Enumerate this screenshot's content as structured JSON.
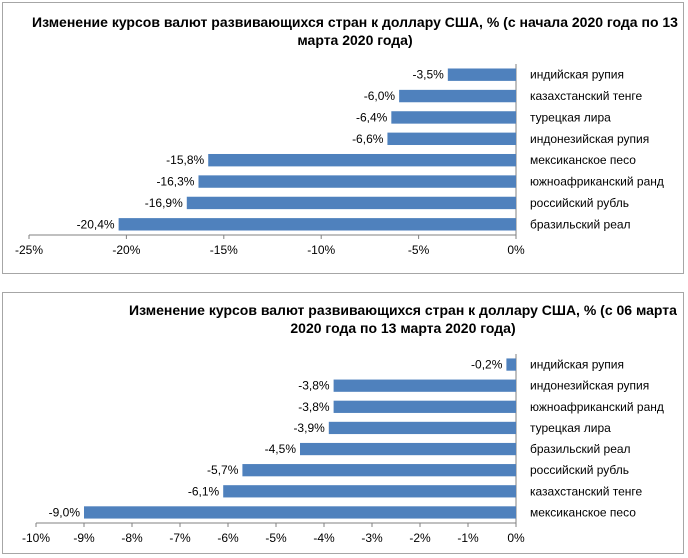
{
  "chart_data": [
    {
      "type": "bar",
      "orientation": "horizontal",
      "title": "Изменение курсов валют развивающихся стран к доллару США, % (с начала 2020 года по 13 марта 2020 года)",
      "categories": [
        "индийская рупия",
        "казахстанский тенге",
        "турецкая лира",
        "индонезийская рупия",
        "мексиканское песо",
        "южноафриканский ранд",
        "российский рубль",
        "бразильский реал"
      ],
      "values": [
        -3.5,
        -6.0,
        -6.4,
        -6.6,
        -15.8,
        -16.3,
        -16.9,
        -20.4
      ],
      "value_labels": [
        "-3,5%",
        "-6,0%",
        "-6,4%",
        "-6,6%",
        "-15,8%",
        "-16,3%",
        "-16,9%",
        "-20,4%"
      ],
      "xlim": [
        -25,
        0
      ],
      "xticks": [
        -25,
        -20,
        -15,
        -10,
        -5,
        0
      ],
      "xtick_labels": [
        "-25%",
        "-20%",
        "-15%",
        "-10%",
        "-5%",
        "0%"
      ],
      "grid": false,
      "bar_color": "#4f81bd"
    },
    {
      "type": "bar",
      "orientation": "horizontal",
      "title": "Изменение курсов валют развивающихся стран к доллару США, % (с 06 марта 2020 года по 13 марта 2020 года)",
      "categories": [
        "индийская рупия",
        "индонезийская рупия",
        "южноафриканский ранд",
        "турецкая лира",
        "бразильский реал",
        "российский рубль",
        "казахстанский тенге",
        "мексиканское песо"
      ],
      "values": [
        -0.2,
        -3.8,
        -3.8,
        -3.9,
        -4.5,
        -5.7,
        -6.1,
        -9.0
      ],
      "value_labels": [
        "-0,2%",
        "-3,8%",
        "-3,8%",
        "-3,9%",
        "-4,5%",
        "-5,7%",
        "-6,1%",
        "-9,0%"
      ],
      "xlim": [
        -10,
        0
      ],
      "xticks": [
        -10,
        -9,
        -8,
        -7,
        -6,
        -5,
        -4,
        -3,
        -2,
        -1,
        0
      ],
      "xtick_labels": [
        "-10%",
        "-9%",
        "-8%",
        "-7%",
        "-6%",
        "-5%",
        "-4%",
        "-3%",
        "-2%",
        "-1%",
        "0%"
      ],
      "grid": false,
      "bar_color": "#4f81bd"
    }
  ]
}
